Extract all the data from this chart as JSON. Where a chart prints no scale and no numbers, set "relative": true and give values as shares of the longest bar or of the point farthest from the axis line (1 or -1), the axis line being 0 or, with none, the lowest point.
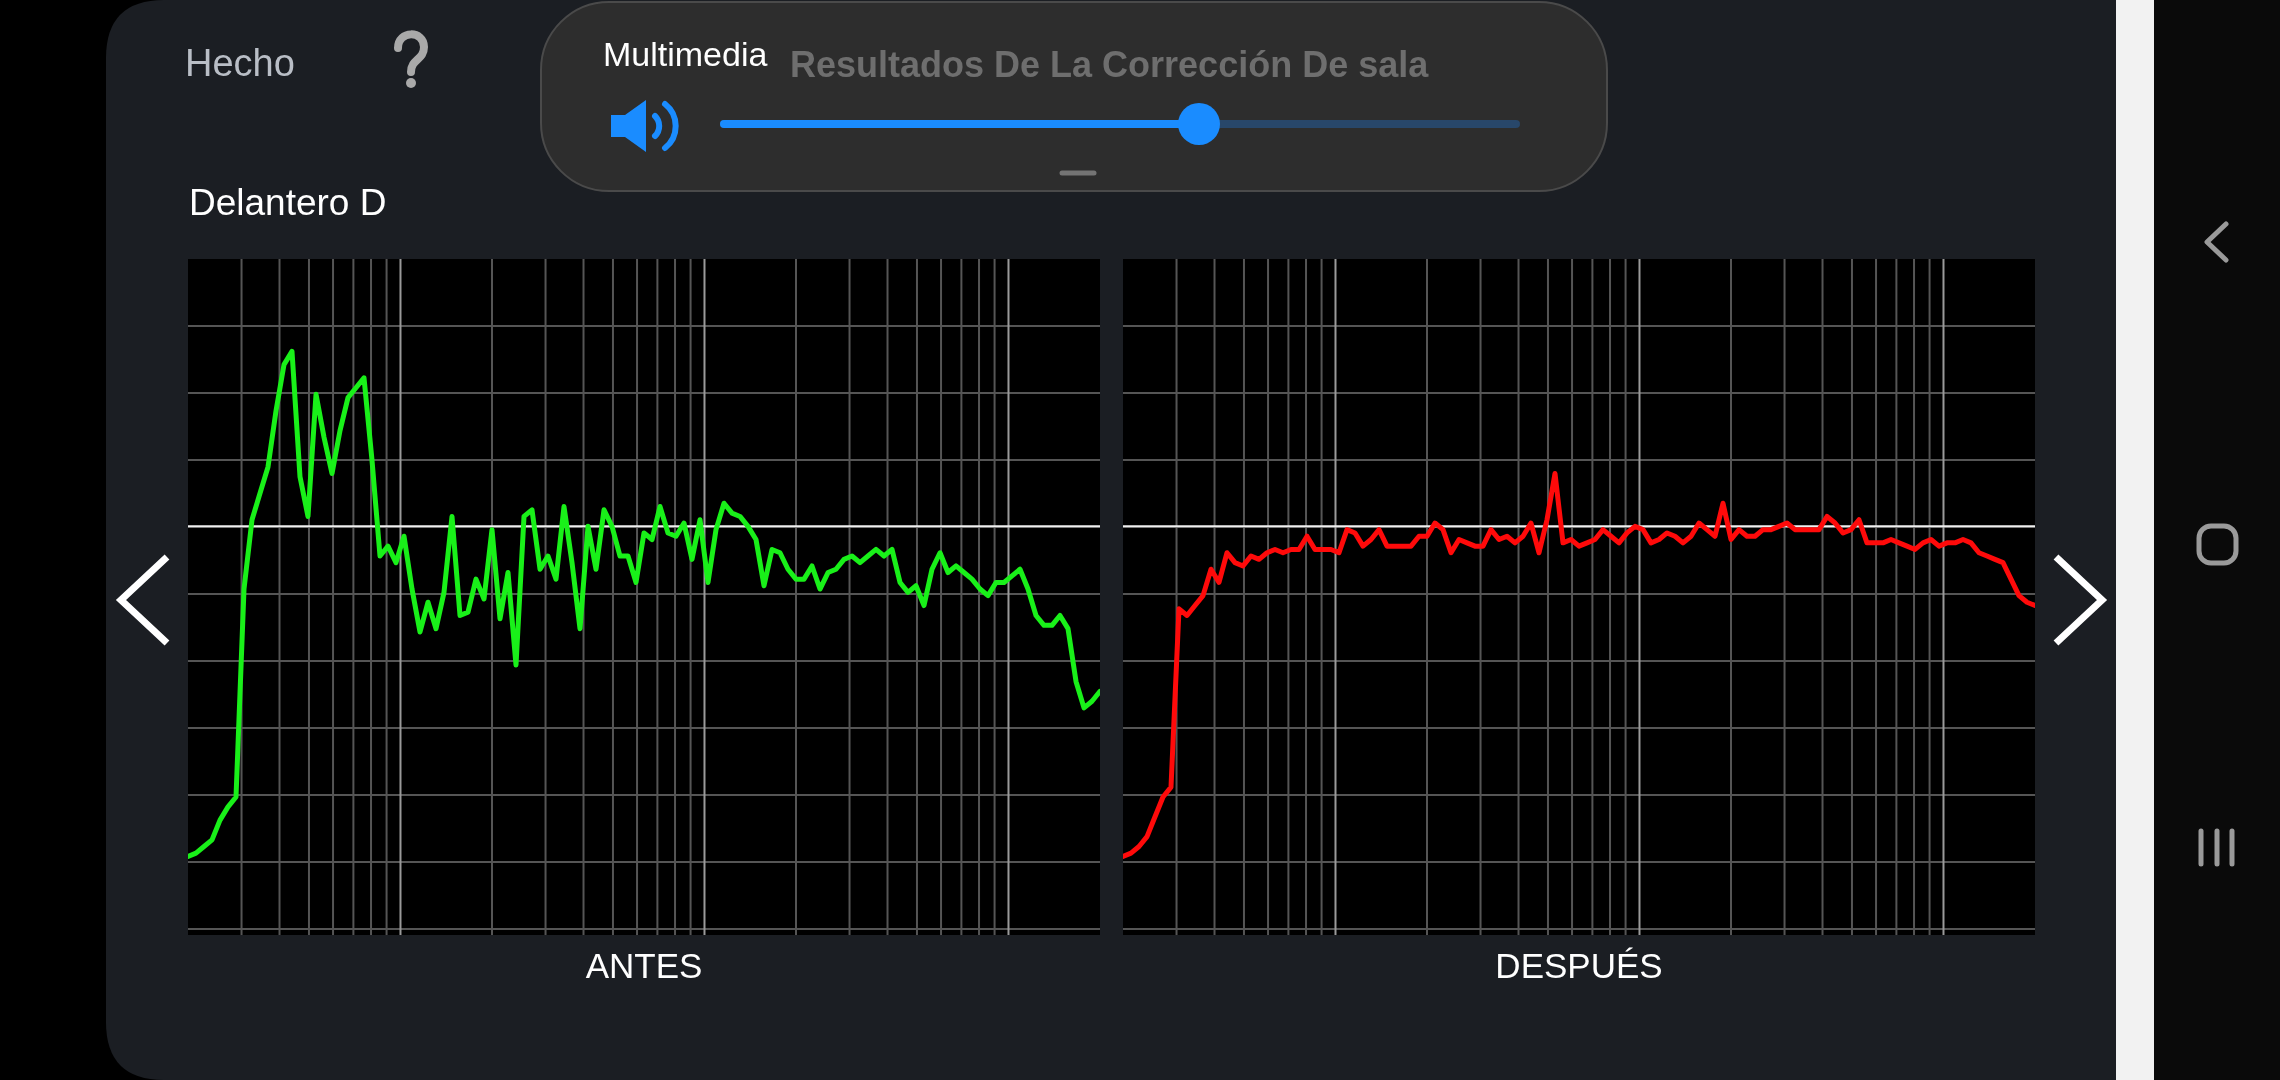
{
  "chart_data": [
    {
      "type": "line",
      "title": "Resultados De La Corrección De sala",
      "subtitle": "Delantero D",
      "xlabel": "ANTES",
      "annotations": [
        "Hecho",
        "Multimedia"
      ],
      "relative": true,
      "grid": true,
      "categories": [
        null,
        null,
        null,
        null,
        null,
        null,
        null,
        null,
        null,
        null,
        null,
        null,
        null,
        null,
        null,
        null,
        null,
        null,
        null,
        null,
        null,
        null,
        null,
        null,
        null,
        null,
        null,
        null,
        null,
        null,
        null,
        null,
        null,
        null,
        null,
        null,
        null,
        null,
        null,
        null,
        null,
        null,
        null,
        null,
        null,
        null,
        null,
        null,
        null,
        null,
        null,
        null,
        null,
        null,
        null,
        null,
        null,
        null,
        null,
        null,
        null,
        null,
        null,
        null,
        null,
        null,
        null,
        null,
        null,
        null,
        null,
        null,
        null,
        null,
        null,
        null,
        null,
        null,
        null,
        null,
        null,
        null,
        null,
        null,
        null,
        null,
        null,
        null,
        null,
        null,
        null,
        null,
        null,
        null,
        null,
        null,
        null,
        null,
        null,
        null,
        null,
        null,
        null,
        null,
        null,
        null,
        null,
        null,
        null,
        null,
        null,
        null,
        null,
        null,
        null
      ],
      "color": "#19f019",
      "values": [
        -1.0,
        -0.99,
        -0.97,
        -0.95,
        -0.89,
        -0.85,
        -0.82,
        -0.19,
        0.02,
        0.1,
        0.18,
        0.35,
        0.49,
        0.53,
        0.15,
        0.03,
        0.4,
        0.27,
        0.16,
        0.29,
        0.39,
        0.42,
        0.45,
        0.2,
        -0.09,
        -0.06,
        -0.11,
        -0.03,
        -0.19,
        -0.32,
        -0.23,
        -0.31,
        -0.2,
        0.03,
        -0.27,
        -0.26,
        -0.16,
        -0.22,
        -0.01,
        -0.28,
        -0.14,
        -0.42,
        0.03,
        0.05,
        -0.13,
        -0.09,
        -0.16,
        0.06,
        -0.11,
        -0.31,
        0.0,
        -0.13,
        0.05,
        0.0,
        -0.09,
        -0.09,
        -0.17,
        -0.02,
        -0.04,
        0.06,
        -0.02,
        -0.03,
        0.01,
        -0.1,
        0.02,
        -0.17,
        -0.01,
        0.07,
        0.04,
        0.03,
        0.0,
        -0.04,
        -0.18,
        -0.07,
        -0.08,
        -0.13,
        -0.16,
        -0.16,
        -0.12,
        -0.19,
        -0.14,
        -0.13,
        -0.1,
        -0.09,
        -0.11,
        -0.09,
        -0.07,
        -0.09,
        -0.07,
        -0.17,
        -0.2,
        -0.18,
        -0.24,
        -0.13,
        -0.08,
        -0.14,
        -0.12,
        -0.14,
        -0.16,
        -0.19,
        -0.21,
        -0.17,
        -0.17,
        -0.15,
        -0.13,
        -0.19,
        -0.27,
        -0.3,
        -0.3,
        -0.27,
        -0.31,
        -0.47,
        -0.55,
        -0.53,
        -0.5
      ]
    },
    {
      "type": "line",
      "xlabel": "DESPUÉS",
      "relative": true,
      "grid": true,
      "categories": [
        null,
        null,
        null,
        null,
        null,
        null,
        null,
        null,
        null,
        null,
        null,
        null,
        null,
        null,
        null,
        null,
        null,
        null,
        null,
        null,
        null,
        null,
        null,
        null,
        null,
        null,
        null,
        null,
        null,
        null,
        null,
        null,
        null,
        null,
        null,
        null,
        null,
        null,
        null,
        null,
        null,
        null,
        null,
        null,
        null,
        null,
        null,
        null,
        null,
        null,
        null,
        null,
        null,
        null,
        null,
        null,
        null,
        null,
        null,
        null,
        null,
        null,
        null,
        null,
        null,
        null,
        null,
        null,
        null,
        null,
        null,
        null,
        null,
        null,
        null,
        null,
        null,
        null,
        null,
        null,
        null,
        null,
        null,
        null,
        null,
        null,
        null,
        null,
        null,
        null,
        null,
        null,
        null,
        null,
        null,
        null,
        null,
        null,
        null,
        null,
        null,
        null,
        null,
        null,
        null,
        null,
        null,
        null,
        null,
        null,
        null,
        null,
        null,
        null,
        null
      ],
      "color": "#ff0a0a",
      "values": [
        -1.0,
        -0.99,
        -0.97,
        -0.94,
        -0.88,
        -0.82,
        -0.79,
        -0.25,
        -0.27,
        -0.24,
        -0.21,
        -0.13,
        -0.17,
        -0.08,
        -0.11,
        -0.12,
        -0.09,
        -0.1,
        -0.08,
        -0.07,
        -0.08,
        -0.07,
        -0.07,
        -0.03,
        -0.07,
        -0.07,
        -0.07,
        -0.08,
        -0.01,
        -0.02,
        -0.06,
        -0.04,
        -0.01,
        -0.06,
        -0.06,
        -0.06,
        -0.06,
        -0.03,
        -0.03,
        0.01,
        -0.01,
        -0.08,
        -0.04,
        -0.05,
        -0.06,
        -0.06,
        -0.01,
        -0.04,
        -0.03,
        -0.05,
        -0.03,
        0.01,
        -0.08,
        0.02,
        0.16,
        -0.05,
        -0.04,
        -0.06,
        -0.05,
        -0.04,
        -0.01,
        -0.03,
        -0.05,
        -0.02,
        0.0,
        -0.01,
        -0.05,
        -0.04,
        -0.02,
        -0.03,
        -0.05,
        -0.03,
        0.01,
        -0.01,
        -0.03,
        0.07,
        -0.04,
        -0.01,
        -0.03,
        -0.03,
        -0.01,
        -0.01,
        0.0,
        0.01,
        -0.01,
        -0.01,
        -0.01,
        -0.01,
        0.03,
        0.01,
        -0.02,
        -0.01,
        0.02,
        -0.05,
        -0.05,
        -0.05,
        -0.04,
        -0.05,
        -0.06,
        -0.07,
        -0.05,
        -0.04,
        -0.06,
        -0.05,
        -0.05,
        -0.04,
        -0.05,
        -0.08,
        -0.09,
        -0.1,
        -0.11,
        -0.16,
        -0.21,
        -0.23,
        -0.24
      ]
    }
  ]
}
